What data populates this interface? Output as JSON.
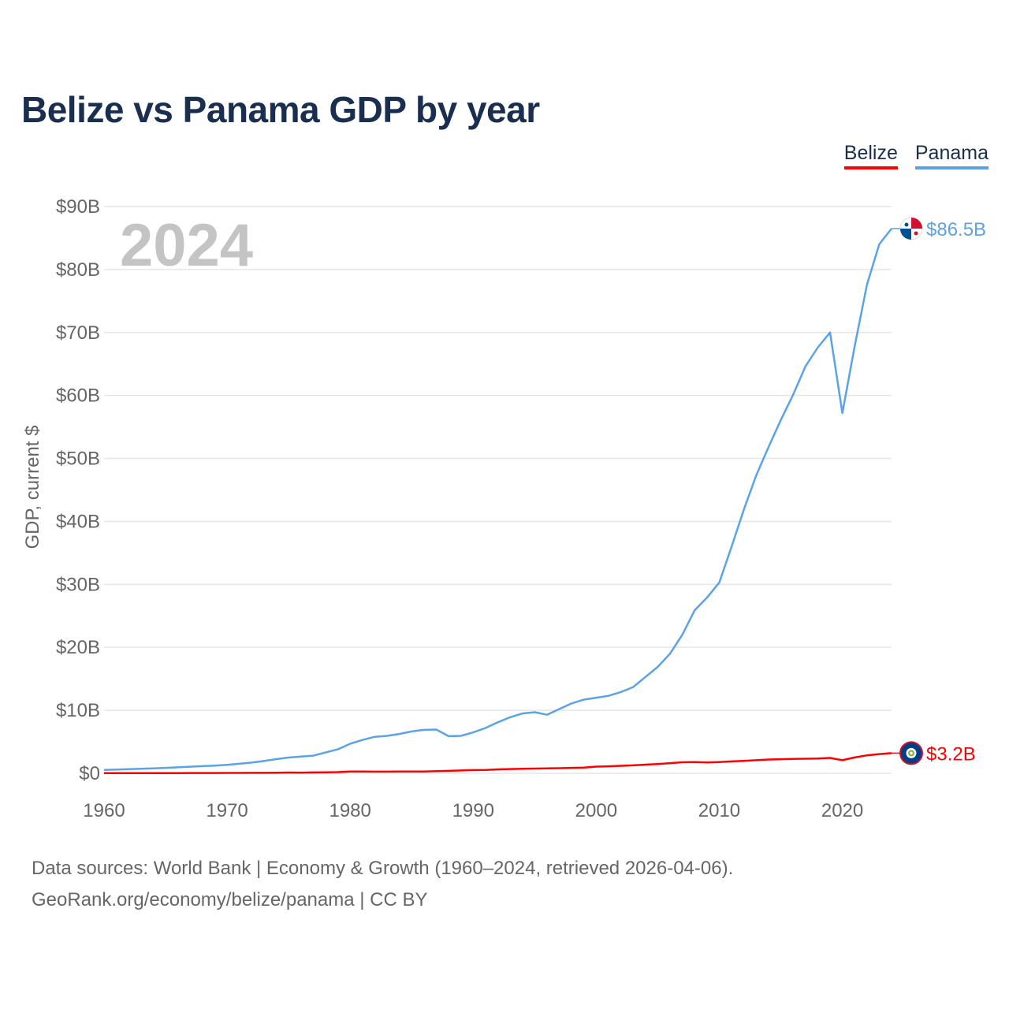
{
  "title": "Belize vs Panama GDP by year",
  "year_watermark": "2024",
  "legend": [
    {
      "name": "Belize",
      "color": "#ff0000"
    },
    {
      "name": "Panama",
      "color": "#5ba3e6"
    }
  ],
  "source": {
    "line1": "Data sources: World Bank | Economy & Growth (1960–2024, retrieved 2026-04-06).",
    "line2": "GeoRank.org/economy/belize/panama | CC BY"
  },
  "chart_data": {
    "type": "line",
    "title": "Belize vs Panama GDP by year",
    "xlabel": "",
    "ylabel": "GDP, current $",
    "xlim": [
      1960,
      2024
    ],
    "ylim": [
      0,
      90
    ],
    "y_unit": "billions USD",
    "x_ticks": [
      "1960",
      "1970",
      "1980",
      "1990",
      "2000",
      "2010",
      "2020"
    ],
    "y_ticks": [
      "$0",
      "$10B",
      "$20B",
      "$30B",
      "$40B",
      "$50B",
      "$60B",
      "$70B",
      "$80B",
      "$90B"
    ],
    "grid": true,
    "x": [
      1960,
      1961,
      1962,
      1963,
      1964,
      1965,
      1966,
      1967,
      1968,
      1969,
      1970,
      1971,
      1972,
      1973,
      1974,
      1975,
      1976,
      1977,
      1978,
      1979,
      1980,
      1981,
      1982,
      1983,
      1984,
      1985,
      1986,
      1987,
      1988,
      1989,
      1990,
      1991,
      1992,
      1993,
      1994,
      1995,
      1996,
      1997,
      1998,
      1999,
      2000,
      2001,
      2002,
      2003,
      2004,
      2005,
      2006,
      2007,
      2008,
      2009,
      2010,
      2011,
      2012,
      2013,
      2014,
      2015,
      2016,
      2017,
      2018,
      2019,
      2020,
      2021,
      2022,
      2023,
      2024
    ],
    "series": [
      {
        "name": "Panama",
        "color": "#5ba3e6",
        "end_label": "$86.5B",
        "values": [
          0.54,
          0.6,
          0.66,
          0.72,
          0.78,
          0.86,
          0.95,
          1.05,
          1.14,
          1.23,
          1.35,
          1.52,
          1.7,
          1.95,
          2.25,
          2.5,
          2.65,
          2.8,
          3.3,
          3.8,
          4.7,
          5.3,
          5.8,
          5.95,
          6.25,
          6.65,
          6.9,
          6.95,
          5.9,
          5.95,
          6.5,
          7.2,
          8.1,
          8.9,
          9.5,
          9.7,
          9.3,
          10.2,
          11.1,
          11.7,
          12.0,
          12.3,
          12.9,
          13.7,
          15.3,
          16.9,
          19.0,
          22.0,
          25.9,
          27.9,
          30.3,
          36.0,
          41.9,
          47.3,
          51.8,
          56.1,
          60.1,
          64.6,
          67.6,
          70.0,
          57.2,
          67.8,
          77.6,
          84.0,
          86.5
        ]
      },
      {
        "name": "Belize",
        "color": "#ff0000",
        "end_label": "$3.2B",
        "values": [
          0.03,
          0.03,
          0.03,
          0.03,
          0.04,
          0.04,
          0.04,
          0.05,
          0.05,
          0.05,
          0.06,
          0.06,
          0.07,
          0.08,
          0.1,
          0.12,
          0.11,
          0.14,
          0.16,
          0.19,
          0.28,
          0.29,
          0.26,
          0.26,
          0.28,
          0.28,
          0.29,
          0.34,
          0.39,
          0.45,
          0.51,
          0.54,
          0.62,
          0.68,
          0.71,
          0.75,
          0.79,
          0.81,
          0.86,
          0.91,
          1.07,
          1.12,
          1.19,
          1.27,
          1.38,
          1.48,
          1.62,
          1.75,
          1.78,
          1.73,
          1.79,
          1.89,
          1.98,
          2.08,
          2.19,
          2.24,
          2.29,
          2.31,
          2.34,
          2.44,
          2.08,
          2.51,
          2.86,
          3.05,
          3.2
        ]
      }
    ]
  }
}
